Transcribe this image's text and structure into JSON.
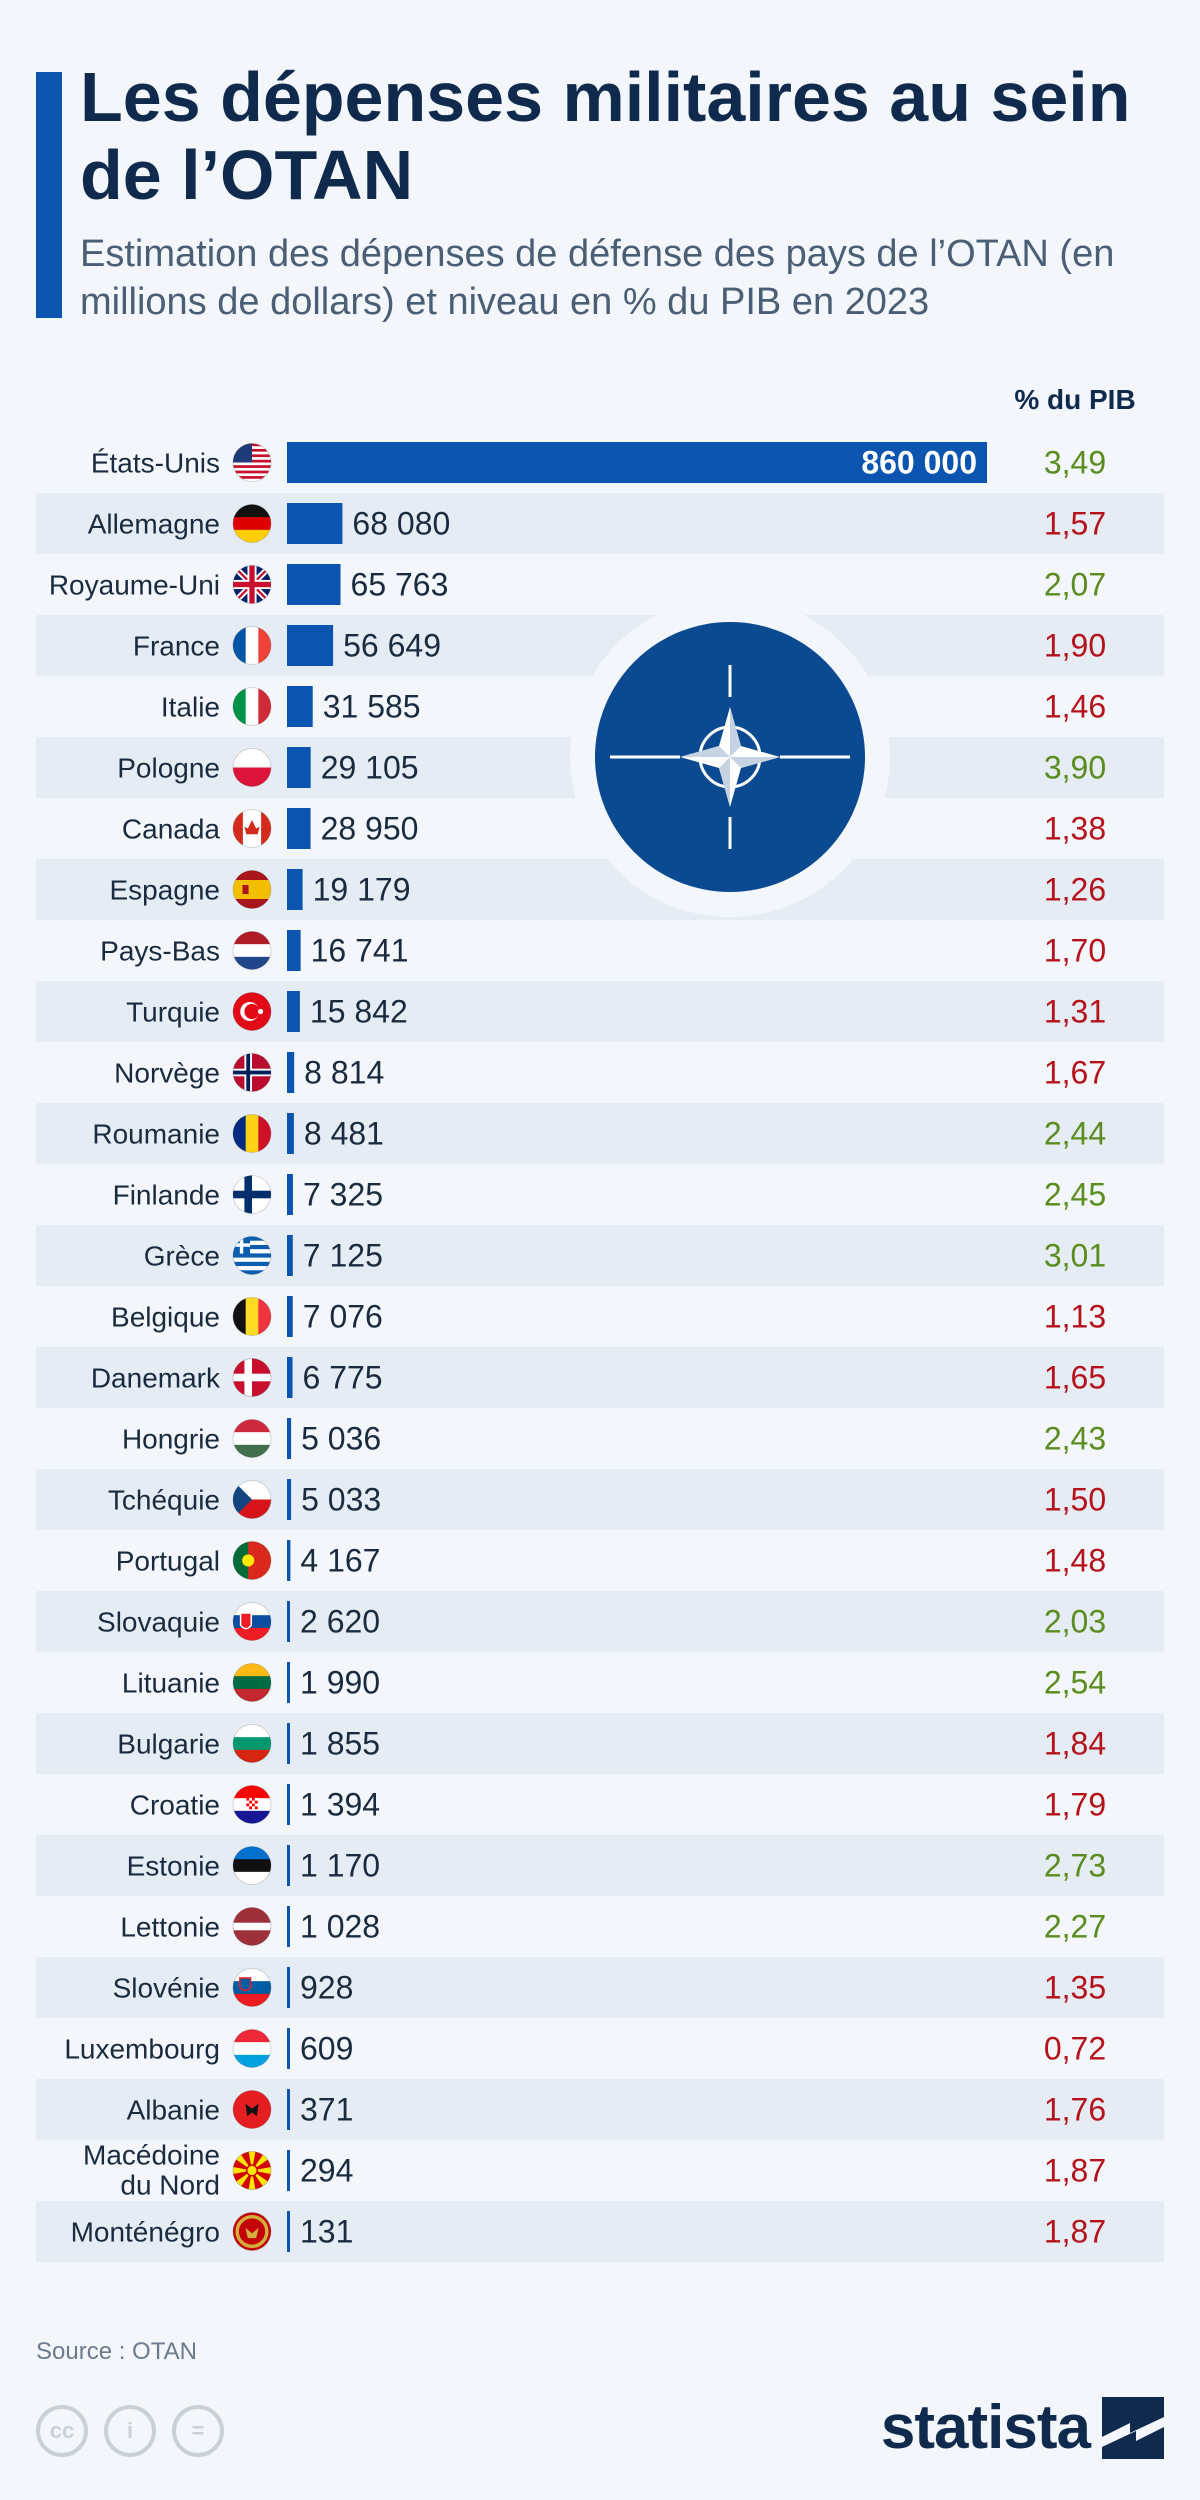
{
  "header": {
    "title": "Les dépenses militaires au sein de l’OTAN",
    "subtitle": "Estimation des dépenses de défense des pays de l’OTAN (en millions de dollars) et niveau en % du PIB en 2023"
  },
  "colors": {
    "bar": "#0b55b0",
    "pct_above_2": "#5b8c1f",
    "pct_below_2": "#b5121b",
    "stripe": "#e6ecf3",
    "nato_blue": "#0b4a91"
  },
  "chart_data": {
    "type": "bar",
    "orientation": "horizontal",
    "title": "Les dépenses militaires au sein de l’OTAN",
    "gdp_column_header": "% du PIB",
    "categories": [
      "États-Unis",
      "Allemagne",
      "Royaume-Uni",
      "France",
      "Italie",
      "Pologne",
      "Canada",
      "Espagne",
      "Pays-Bas",
      "Turquie",
      "Norvège",
      "Roumanie",
      "Finlande",
      "Grèce",
      "Belgique",
      "Danemark",
      "Hongrie",
      "Tchéquie",
      "Portugal",
      "Slovaquie",
      "Lituanie",
      "Bulgarie",
      "Croatie",
      "Estonie",
      "Lettonie",
      "Slovénie",
      "Luxembourg",
      "Albanie",
      "Macédoine du Nord",
      "Monténégro"
    ],
    "values": [
      860000,
      68080,
      65763,
      56649,
      31585,
      29105,
      28950,
      19179,
      16741,
      15842,
      8814,
      8481,
      7325,
      7125,
      7076,
      6775,
      5036,
      5033,
      4167,
      2620,
      1990,
      1855,
      1394,
      1170,
      1028,
      928,
      609,
      371,
      294,
      131
    ],
    "value_labels": [
      "860 000",
      "68 080",
      "65 763",
      "56 649",
      "31 585",
      "29 105",
      "28 950",
      "19 179",
      "16 741",
      "15 842",
      "8 814",
      "8 481",
      "7 325",
      "7 125",
      "7 076",
      "6 775",
      "5 036",
      "5 033",
      "4 167",
      "2 620",
      "1 990",
      "1 855",
      "1 394",
      "1 170",
      "1 028",
      "928",
      "609",
      "371",
      "294",
      "131"
    ],
    "gdp_pct_labels": [
      "3,49",
      "1,57",
      "2,07",
      "1,90",
      "1,46",
      "3,90",
      "1,38",
      "1,26",
      "1,70",
      "1,31",
      "1,67",
      "2,44",
      "2,45",
      "3,01",
      "1,13",
      "1,65",
      "2,43",
      "1,50",
      "1,48",
      "2,03",
      "2,54",
      "1,84",
      "1,79",
      "2,73",
      "2,27",
      "1,35",
      "0,72",
      "1,76",
      "1,87",
      "1,87"
    ],
    "gdp_pct": [
      3.49,
      1.57,
      2.07,
      1.9,
      1.46,
      3.9,
      1.38,
      1.26,
      1.7,
      1.31,
      1.67,
      2.44,
      2.45,
      3.01,
      1.13,
      1.65,
      2.43,
      1.5,
      1.48,
      2.03,
      2.54,
      1.84,
      1.79,
      2.73,
      2.27,
      1.35,
      0.72,
      1.76,
      1.87,
      1.87
    ],
    "flags": [
      "us",
      "de",
      "gb",
      "fr",
      "it",
      "pl",
      "ca",
      "es",
      "nl",
      "tr",
      "no",
      "ro",
      "fi",
      "gr",
      "be",
      "dk",
      "hu",
      "cz",
      "pt",
      "sk",
      "lt",
      "bg",
      "hr",
      "ee",
      "lv",
      "si",
      "lu",
      "al",
      "mk",
      "me"
    ]
  },
  "footer": {
    "source": "Source : OTAN",
    "brand": "statista"
  }
}
